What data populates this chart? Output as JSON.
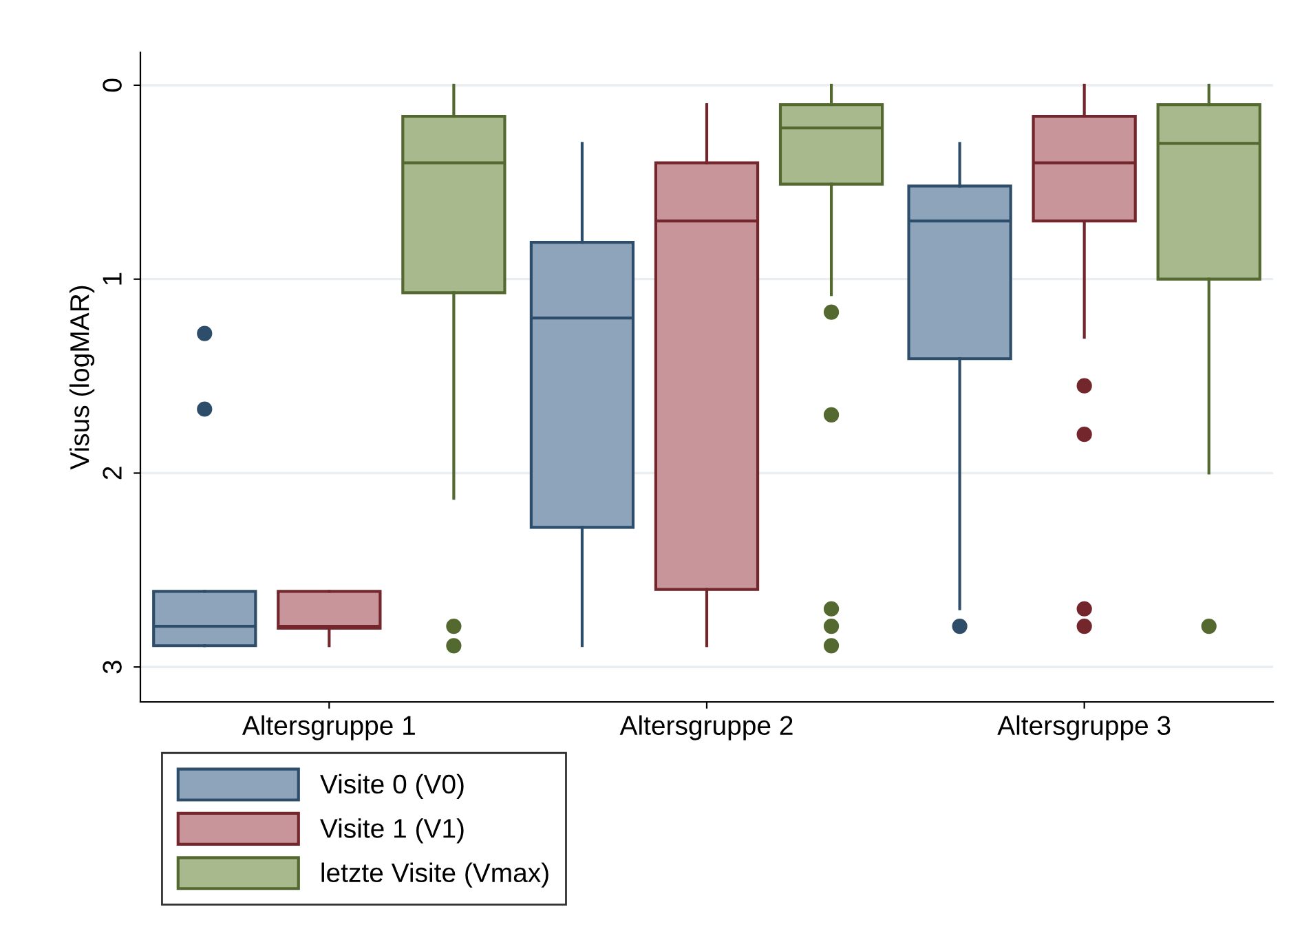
{
  "chart_data": {
    "type": "box",
    "ylabel": "Visus (logMAR)",
    "categories": [
      "Altersgruppe 1",
      "Altersgruppe 2",
      "Altersgruppe 3"
    ],
    "ylim": [
      3.18,
      -0.17
    ],
    "yticks": [
      0,
      1,
      2,
      3
    ],
    "grid": "y",
    "legend": "bottom left",
    "series": [
      {
        "name": "Visite 0 (V0)",
        "color": "#8da4ba",
        "boxes": [
          {
            "low": 2.89,
            "q1": 2.89,
            "median": 2.79,
            "q3": 2.61,
            "high": 2.61,
            "outliers": [
              1.28,
              1.67
            ]
          },
          {
            "low": 2.89,
            "q1": 2.28,
            "median": 1.2,
            "q3": 0.81,
            "high": 0.3
          },
          {
            "low": 2.7,
            "q1": 1.41,
            "median": 0.7,
            "q3": 0.52,
            "high": 0.3,
            "outliers": [
              2.79
            ]
          }
        ]
      },
      {
        "name": "Visite 1 (V1)",
        "color": "#c8969a",
        "boxes": [
          {
            "low": 2.89,
            "q1": 2.8,
            "median": 2.79,
            "q3": 2.61,
            "high": 2.61
          },
          {
            "low": 2.89,
            "q1": 2.6,
            "median": 0.7,
            "q3": 0.4,
            "high": 0.1
          },
          {
            "low": 1.3,
            "q1": 0.7,
            "median": 0.4,
            "q3": 0.16,
            "high": 0,
            "outliers": [
              1.55,
              1.8,
              2.7,
              2.79
            ]
          }
        ]
      },
      {
        "name": "letzte Visite (Vmax)",
        "color": "#a9b98e",
        "boxes": [
          {
            "low": 2.13,
            "q1": 1.07,
            "median": 0.4,
            "q3": 0.16,
            "high": 0,
            "outliers": [
              2.79,
              2.89
            ]
          },
          {
            "low": 1.08,
            "q1": 0.51,
            "median": 0.22,
            "q3": 0.1,
            "high": 0,
            "outliers": [
              1.17,
              1.7,
              2.7,
              2.79,
              2.89
            ]
          },
          {
            "low": 2.0,
            "q1": 1.0,
            "median": 0.3,
            "q3": 0.1,
            "high": 0,
            "outliers": [
              2.79
            ]
          }
        ]
      }
    ]
  }
}
